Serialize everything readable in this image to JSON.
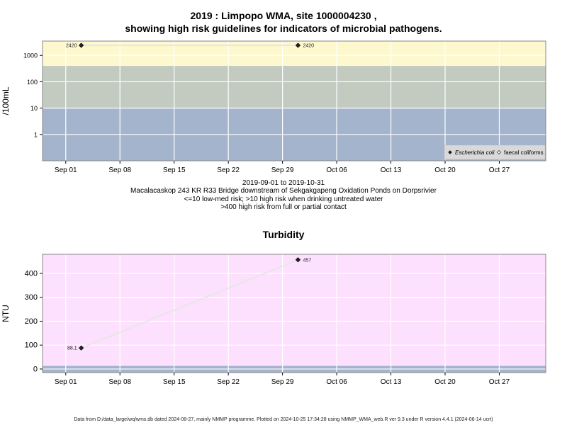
{
  "header": {
    "title_line1": "2019 : Limpopo WMA, site 1000004230 ,",
    "title_line2": "showing high risk guidelines for indicators of microbial pathogens."
  },
  "subtitle": {
    "line1": "2019-09-01 to 2019-10-31",
    "line2": "Macalacaskop 243 KR R33 Bridge downstream of Sekgakgapeng Oxidation Ponds on Dorpsrivier",
    "line3": "<=10 low-med risk; >10 high risk when drinking untreated water",
    "line4": ">400 high risk from full or partial contact"
  },
  "footer": {
    "text": "Data from D:/data_large/wq/wms.db dated 2024-08-27, mainly NMMP programme. Plotted on 2024-10-25 17:34:28 using NMMP_WMA_web.R ver 9.3 under R version 4.4.1 (2024-06-14 ucrt)"
  },
  "colors": {
    "band_low": "#a3b4cc",
    "band_mid": "#c3cbc0",
    "band_high": "#fef8cf",
    "turbidity_bg": "#fde0fd",
    "turbidity_band": "#a3b4cc",
    "grid": "#ffffff",
    "line": "#e6e6e6",
    "point": "#222222"
  },
  "chart_data": [
    {
      "type": "scatter",
      "title": "",
      "xlabel": "",
      "ylabel": "/100mL",
      "y_scale": "log10",
      "ylim": [
        0.1,
        3500
      ],
      "xlim": [
        "2019-08-29",
        "2019-11-02"
      ],
      "x_ticks": [
        "Sep 01",
        "Sep 08",
        "Sep 15",
        "Sep 22",
        "Sep 29",
        "Oct 06",
        "Oct 13",
        "Oct 20",
        "Oct 27"
      ],
      "x_tick_dates": [
        "2019-09-01",
        "2019-09-08",
        "2019-09-15",
        "2019-09-22",
        "2019-09-29",
        "2019-10-06",
        "2019-10-13",
        "2019-10-20",
        "2019-10-27"
      ],
      "y_ticks": [
        "1",
        "10",
        "100",
        "1000"
      ],
      "y_tick_values": [
        1,
        10,
        100,
        1000
      ],
      "bands": [
        {
          "from": 0.1,
          "to": 10,
          "color": "#a3b4cc"
        },
        {
          "from": 10,
          "to": 400,
          "color": "#c3cbc0"
        },
        {
          "from": 400,
          "to": 3500,
          "color": "#fef8cf"
        }
      ],
      "series": [
        {
          "name": "Escherichia coli",
          "marker": "filled-diamond",
          "points": [
            {
              "x": "2019-09-03",
              "y": 2420,
              "label": "2420"
            },
            {
              "x": "2019-10-01",
              "y": 2420,
              "label": "2420"
            }
          ]
        },
        {
          "name": "faecal coliforms",
          "marker": "open-diamond",
          "points": []
        }
      ],
      "legend": {
        "position": "bottom-right",
        "items": [
          "Escherichia coli",
          "faecal coliforms"
        ]
      },
      "grid": true
    },
    {
      "type": "line",
      "title": "Turbidity",
      "xlabel": "",
      "ylabel": "NTU",
      "ylim": [
        -15,
        480
      ],
      "xlim": [
        "2019-08-29",
        "2019-11-02"
      ],
      "x_ticks": [
        "Sep 01",
        "Sep 08",
        "Sep 15",
        "Sep 22",
        "Sep 29",
        "Oct 06",
        "Oct 13",
        "Oct 20",
        "Oct 27"
      ],
      "x_tick_dates": [
        "2019-09-01",
        "2019-09-08",
        "2019-09-15",
        "2019-09-22",
        "2019-09-29",
        "2019-10-06",
        "2019-10-13",
        "2019-10-20",
        "2019-10-27"
      ],
      "y_ticks": [
        "0",
        "100",
        "200",
        "300",
        "400"
      ],
      "y_tick_values": [
        0,
        100,
        200,
        300,
        400
      ],
      "bands": [
        {
          "from": -15,
          "to": 13,
          "color": "#a3b4cc"
        }
      ],
      "series": [
        {
          "name": "Turbidity",
          "marker": "filled-diamond",
          "points": [
            {
              "x": "2019-09-03",
              "y": 88.1,
              "label": "88.1"
            },
            {
              "x": "2019-10-01",
              "y": 457,
              "label": "457"
            }
          ]
        }
      ],
      "grid": true
    }
  ]
}
